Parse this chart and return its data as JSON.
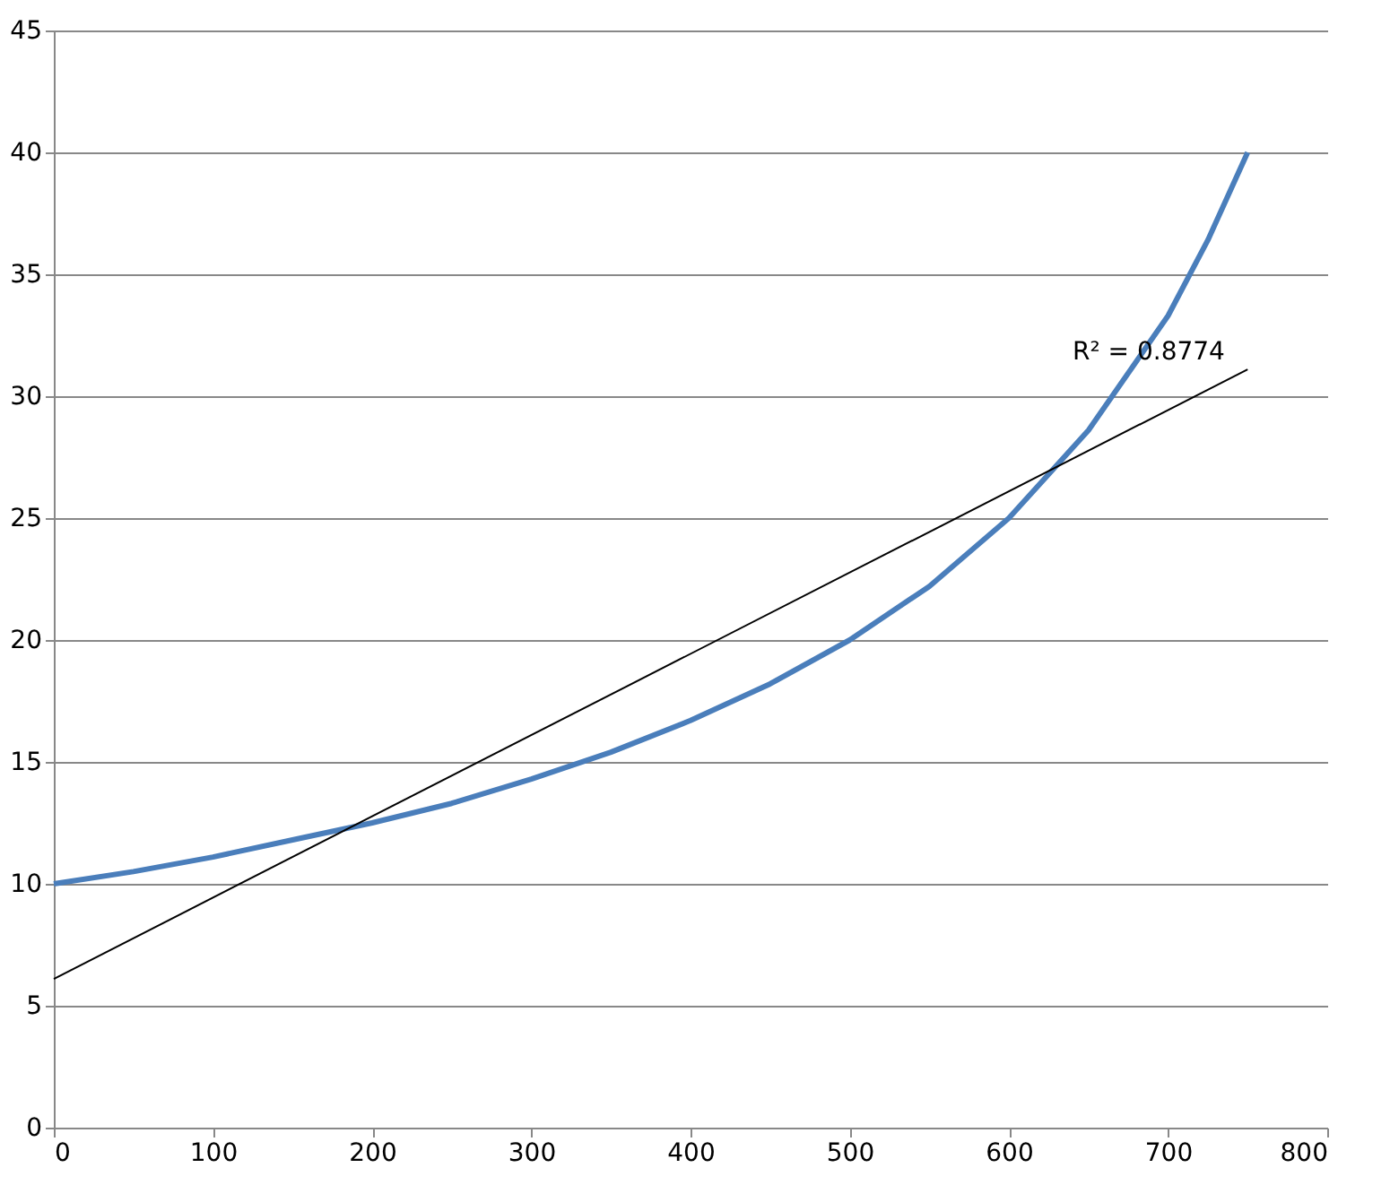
{
  "chart_data": {
    "type": "line",
    "xlim": [
      0,
      800
    ],
    "xticks": [
      0,
      100,
      200,
      300,
      400,
      500,
      600,
      700,
      800
    ],
    "ylim": [
      0,
      45
    ],
    "yticks": [
      0,
      5,
      10,
      15,
      20,
      25,
      30,
      35,
      40,
      45
    ],
    "grid": "y",
    "marker": "none",
    "series": [
      {
        "color": "#4a7ebb",
        "x": [
          0,
          50,
          100,
          150,
          200,
          250,
          300,
          350,
          400,
          450,
          500,
          550,
          600,
          650,
          700,
          725,
          750
        ],
        "values": [
          10,
          10.5,
          11.1,
          11.8,
          12.5,
          13.3,
          14.3,
          15.4,
          16.7,
          18.2,
          20,
          22.2,
          25,
          28.6,
          33.3,
          36.4,
          40
        ]
      },
      {
        "color": "#000000",
        "x": [
          0,
          750
        ],
        "values": [
          6.1,
          31.1
        ]
      }
    ],
    "annotations": [
      "R² = 0.8774"
    ]
  }
}
